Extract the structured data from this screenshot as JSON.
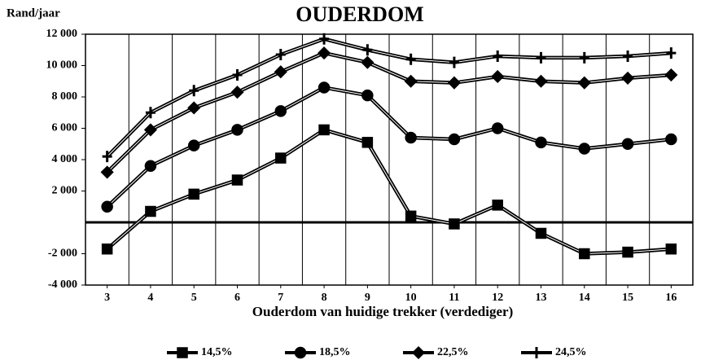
{
  "chart_data": {
    "type": "line",
    "title": "OUDERDOM",
    "y_label": "Rand/jaar",
    "x_label": "Ouderdom van huidige trekker (verdediger)",
    "x": [
      3,
      4,
      5,
      6,
      7,
      8,
      9,
      10,
      11,
      12,
      13,
      14,
      15,
      16
    ],
    "xlim": [
      2.5,
      16.5
    ],
    "xticks": [
      3,
      4,
      5,
      6,
      7,
      8,
      9,
      10,
      11,
      12,
      13,
      14,
      15,
      16
    ],
    "ylim": [
      -4000,
      12000
    ],
    "yticks": [
      {
        "value": -4000,
        "label": "-4 000"
      },
      {
        "value": -2000,
        "label": "-2 000"
      },
      {
        "value": 2000,
        "label": "2 000"
      },
      {
        "value": 4000,
        "label": "4 000"
      },
      {
        "value": 6000,
        "label": "6 000"
      },
      {
        "value": 8000,
        "label": "8 000"
      },
      {
        "value": 10000,
        "label": "10 000"
      },
      {
        "value": 12000,
        "label": "12 000"
      }
    ],
    "series": [
      {
        "name": "14,5%",
        "color": "#000000",
        "marker": "square",
        "values": [
          -1700,
          700,
          1800,
          2700,
          4100,
          5900,
          5100,
          400,
          -100,
          1100,
          -700,
          -2000,
          -1900,
          -1700
        ]
      },
      {
        "name": "18,5%",
        "color": "#000000",
        "marker": "circle",
        "values": [
          1000,
          3600,
          4900,
          5900,
          7100,
          8600,
          8100,
          5400,
          5300,
          6000,
          5100,
          4700,
          5000,
          5300
        ]
      },
      {
        "name": "22,5%",
        "color": "#000000",
        "marker": "diamond",
        "values": [
          3200,
          5900,
          7300,
          8300,
          9600,
          10800,
          10200,
          9000,
          8900,
          9300,
          9000,
          8900,
          9200,
          9400
        ]
      },
      {
        "name": "24,5%",
        "color": "#000000",
        "marker": "plus",
        "values": [
          4200,
          7000,
          8400,
          9400,
          10700,
          11700,
          11000,
          10400,
          10200,
          10600,
          10500,
          10500,
          10600,
          10800
        ]
      }
    ]
  }
}
